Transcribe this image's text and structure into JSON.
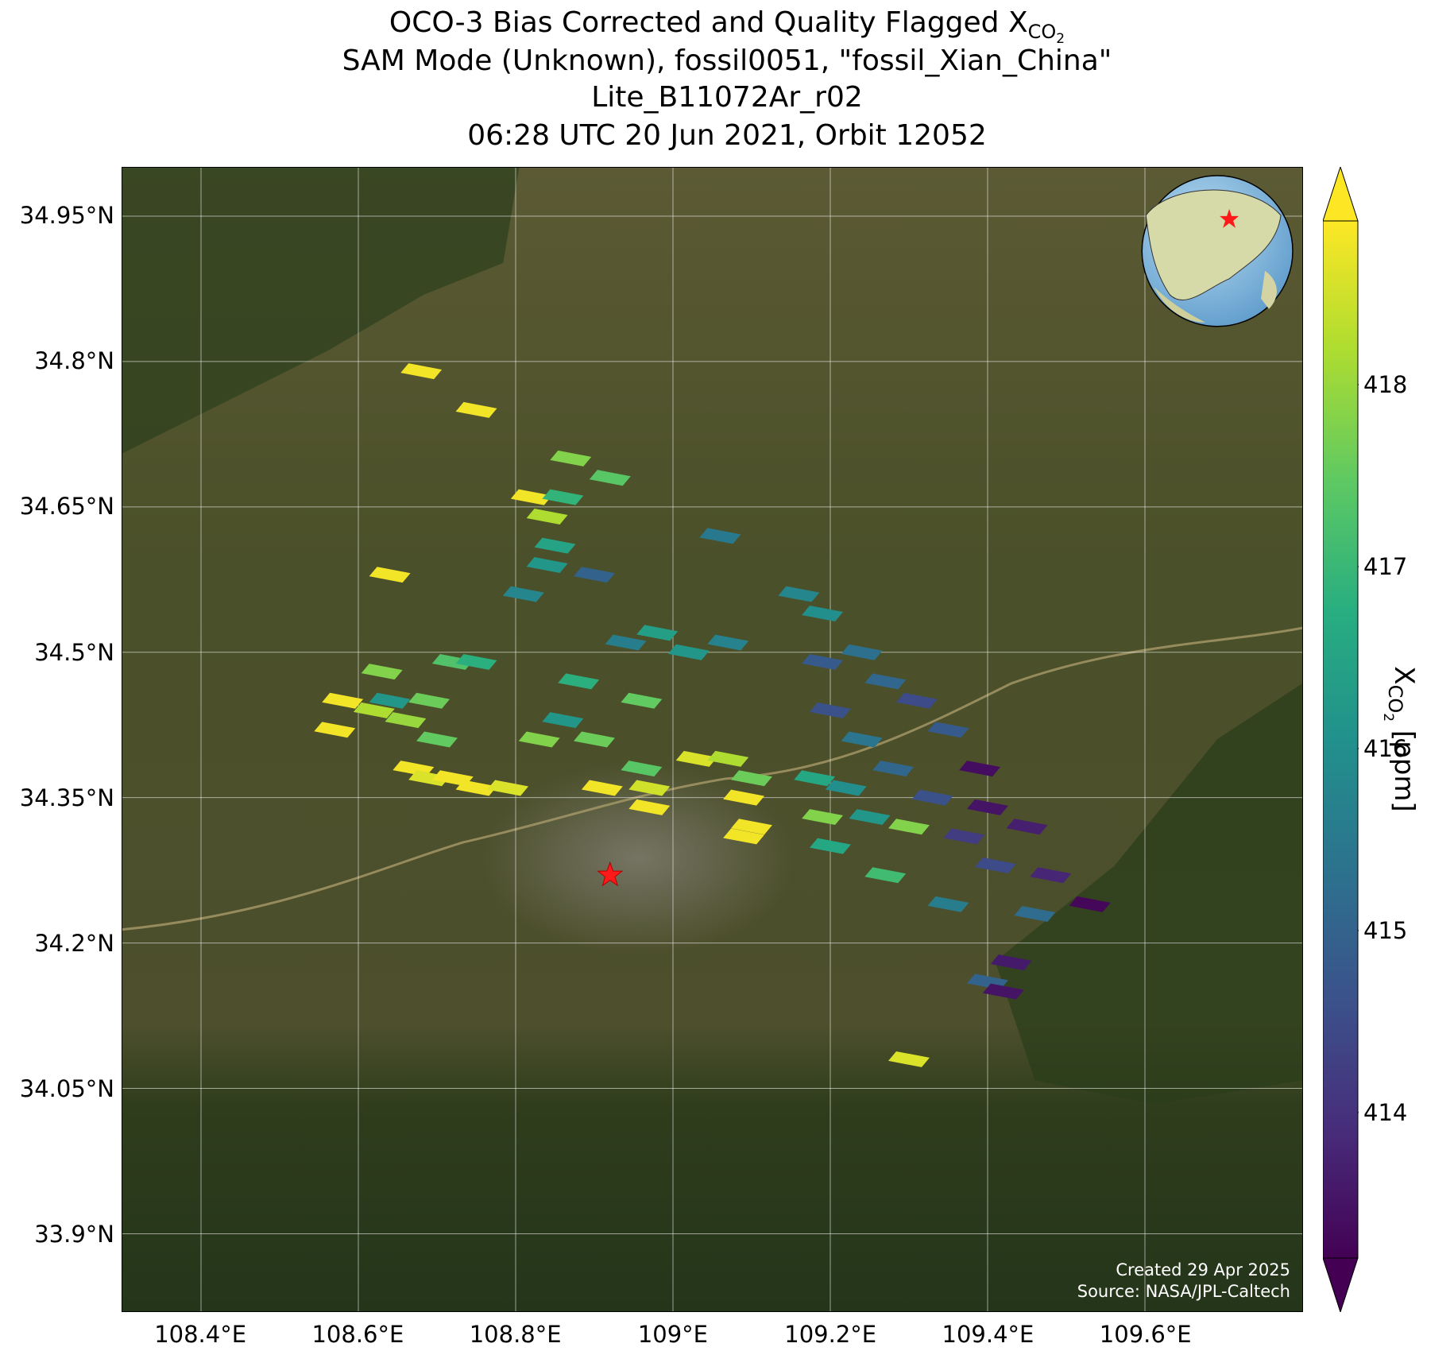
{
  "title": {
    "line1_prefix": "OCO-3 Bias Corrected and Quality Flagged X",
    "line1_sub": "CO",
    "line1_sub2": "2",
    "line2": "SAM Mode (Unknown), fossil0051, \"fossil_Xian_China\"",
    "line3": "Lite_B11072Ar_r02",
    "line4": "06:28 UTC 20 Jun 2021, Orbit 12052"
  },
  "map": {
    "lon_range": [
      108.3,
      109.8
    ],
    "lat_range": [
      33.82,
      35.0
    ],
    "lat_ticks": [
      "34.95°N",
      "34.8°N",
      "34.65°N",
      "34.5°N",
      "34.35°N",
      "34.2°N",
      "34.05°N",
      "33.9°N"
    ],
    "lat_values": [
      34.95,
      34.8,
      34.65,
      34.5,
      34.35,
      34.2,
      34.05,
      33.9
    ],
    "lon_ticks": [
      "108.4°E",
      "108.6°E",
      "108.8°E",
      "109°E",
      "109.2°E",
      "109.4°E",
      "109.6°E"
    ],
    "lon_values": [
      108.4,
      108.6,
      108.8,
      109.0,
      109.2,
      109.4,
      109.6
    ],
    "target": {
      "lon": 108.92,
      "lat": 34.27,
      "marker": "red-star"
    },
    "credit_line1": "Created 29 Apr 2025",
    "credit_line2": "Source: NASA/JPL-Caltech",
    "colors": {
      "background": "#3f4a26",
      "gridline": "#ffffff",
      "target": "#ff1a1a"
    }
  },
  "colorbar": {
    "label_prefix": "X",
    "label_sub": "CO",
    "label_sub2": "2",
    "label_suffix": " [ppm]",
    "range": [
      413.2,
      418.9
    ],
    "ticks": [
      "418",
      "417",
      "416",
      "415",
      "414"
    ],
    "tick_values": [
      418,
      417,
      416,
      415,
      414
    ],
    "colormap": "viridis",
    "extend": "both"
  },
  "chart_data": {
    "type": "scatter",
    "units": "ppm",
    "points": [
      {
        "lon": 108.68,
        "lat": 34.79,
        "v": 418.8
      },
      {
        "lon": 108.75,
        "lat": 34.75,
        "v": 418.8
      },
      {
        "lon": 108.87,
        "lat": 34.7,
        "v": 417.8
      },
      {
        "lon": 108.92,
        "lat": 34.68,
        "v": 417.4
      },
      {
        "lon": 108.82,
        "lat": 34.66,
        "v": 418.8
      },
      {
        "lon": 108.86,
        "lat": 34.66,
        "v": 416.9
      },
      {
        "lon": 108.84,
        "lat": 34.64,
        "v": 418.2
      },
      {
        "lon": 108.85,
        "lat": 34.61,
        "v": 416.5
      },
      {
        "lon": 108.84,
        "lat": 34.59,
        "v": 416.2
      },
      {
        "lon": 108.9,
        "lat": 34.58,
        "v": 415.0
      },
      {
        "lon": 108.81,
        "lat": 34.56,
        "v": 415.8
      },
      {
        "lon": 108.64,
        "lat": 34.58,
        "v": 418.8
      },
      {
        "lon": 109.06,
        "lat": 34.62,
        "v": 415.5
      },
      {
        "lon": 109.16,
        "lat": 34.56,
        "v": 415.8
      },
      {
        "lon": 109.19,
        "lat": 34.54,
        "v": 416.0
      },
      {
        "lon": 108.98,
        "lat": 34.52,
        "v": 416.4
      },
      {
        "lon": 108.94,
        "lat": 34.51,
        "v": 415.6
      },
      {
        "lon": 109.02,
        "lat": 34.5,
        "v": 416.2
      },
      {
        "lon": 109.07,
        "lat": 34.51,
        "v": 415.7
      },
      {
        "lon": 109.24,
        "lat": 34.5,
        "v": 415.3
      },
      {
        "lon": 109.19,
        "lat": 34.49,
        "v": 414.8
      },
      {
        "lon": 108.88,
        "lat": 34.47,
        "v": 416.8
      },
      {
        "lon": 108.96,
        "lat": 34.45,
        "v": 417.5
      },
      {
        "lon": 109.27,
        "lat": 34.47,
        "v": 415.1
      },
      {
        "lon": 109.31,
        "lat": 34.45,
        "v": 414.5
      },
      {
        "lon": 108.86,
        "lat": 34.43,
        "v": 416.2
      },
      {
        "lon": 109.2,
        "lat": 34.44,
        "v": 414.6
      },
      {
        "lon": 108.9,
        "lat": 34.41,
        "v": 417.6
      },
      {
        "lon": 109.24,
        "lat": 34.41,
        "v": 415.4
      },
      {
        "lon": 109.35,
        "lat": 34.42,
        "v": 414.8
      },
      {
        "lon": 109.39,
        "lat": 34.38,
        "v": 413.4
      },
      {
        "lon": 109.18,
        "lat": 34.37,
        "v": 416.6
      },
      {
        "lon": 109.22,
        "lat": 34.36,
        "v": 416.0
      },
      {
        "lon": 109.28,
        "lat": 34.38,
        "v": 415.1
      },
      {
        "lon": 109.33,
        "lat": 34.35,
        "v": 414.6
      },
      {
        "lon": 109.4,
        "lat": 34.34,
        "v": 413.5
      },
      {
        "lon": 109.19,
        "lat": 34.33,
        "v": 417.8
      },
      {
        "lon": 109.25,
        "lat": 34.33,
        "v": 416.2
      },
      {
        "lon": 109.3,
        "lat": 34.32,
        "v": 417.8
      },
      {
        "lon": 109.37,
        "lat": 34.31,
        "v": 414.2
      },
      {
        "lon": 109.45,
        "lat": 34.32,
        "v": 413.7
      },
      {
        "lon": 109.2,
        "lat": 34.3,
        "v": 416.6
      },
      {
        "lon": 109.41,
        "lat": 34.28,
        "v": 414.5
      },
      {
        "lon": 109.48,
        "lat": 34.27,
        "v": 413.8
      },
      {
        "lon": 109.53,
        "lat": 34.24,
        "v": 413.3
      },
      {
        "lon": 109.27,
        "lat": 34.27,
        "v": 417.1
      },
      {
        "lon": 109.35,
        "lat": 34.24,
        "v": 415.6
      },
      {
        "lon": 109.46,
        "lat": 34.23,
        "v": 415.2
      },
      {
        "lon": 109.4,
        "lat": 34.16,
        "v": 415.0
      },
      {
        "lon": 109.43,
        "lat": 34.18,
        "v": 413.6
      },
      {
        "lon": 109.42,
        "lat": 34.15,
        "v": 413.5
      },
      {
        "lon": 109.3,
        "lat": 34.08,
        "v": 418.6
      },
      {
        "lon": 108.58,
        "lat": 34.45,
        "v": 418.8
      },
      {
        "lon": 108.62,
        "lat": 34.44,
        "v": 418.2
      },
      {
        "lon": 108.57,
        "lat": 34.42,
        "v": 418.8
      },
      {
        "lon": 108.63,
        "lat": 34.48,
        "v": 417.8
      },
      {
        "lon": 108.64,
        "lat": 34.45,
        "v": 416.2
      },
      {
        "lon": 108.66,
        "lat": 34.43,
        "v": 418.0
      },
      {
        "lon": 108.69,
        "lat": 34.45,
        "v": 417.6
      },
      {
        "lon": 108.7,
        "lat": 34.41,
        "v": 417.5
      },
      {
        "lon": 108.72,
        "lat": 34.49,
        "v": 417.3
      },
      {
        "lon": 108.75,
        "lat": 34.49,
        "v": 416.8
      },
      {
        "lon": 108.67,
        "lat": 34.38,
        "v": 418.8
      },
      {
        "lon": 108.69,
        "lat": 34.37,
        "v": 418.6
      },
      {
        "lon": 108.72,
        "lat": 34.37,
        "v": 418.8
      },
      {
        "lon": 108.75,
        "lat": 34.36,
        "v": 418.8
      },
      {
        "lon": 108.79,
        "lat": 34.36,
        "v": 418.6
      },
      {
        "lon": 108.83,
        "lat": 34.41,
        "v": 417.8
      },
      {
        "lon": 108.91,
        "lat": 34.36,
        "v": 418.8
      },
      {
        "lon": 108.96,
        "lat": 34.38,
        "v": 417.4
      },
      {
        "lon": 108.97,
        "lat": 34.34,
        "v": 418.8
      },
      {
        "lon": 108.97,
        "lat": 34.36,
        "v": 418.5
      },
      {
        "lon": 109.03,
        "lat": 34.39,
        "v": 418.6
      },
      {
        "lon": 109.07,
        "lat": 34.39,
        "v": 418.2
      },
      {
        "lon": 109.09,
        "lat": 34.35,
        "v": 418.8
      },
      {
        "lon": 109.1,
        "lat": 34.37,
        "v": 417.6
      },
      {
        "lon": 109.1,
        "lat": 34.32,
        "v": 418.8
      },
      {
        "lon": 109.09,
        "lat": 34.31,
        "v": 418.8
      }
    ]
  }
}
